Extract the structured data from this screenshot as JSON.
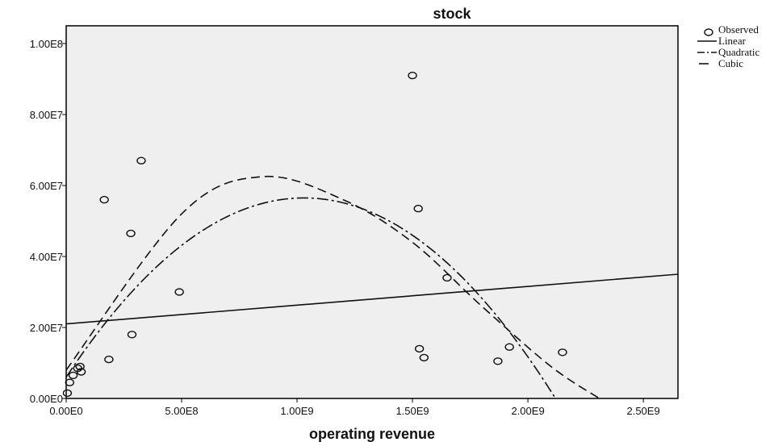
{
  "chart_data": {
    "type": "scatter",
    "title": "stock",
    "xlabel": "operating revenue",
    "ylabel": "",
    "xlim": [
      0,
      2650000000
    ],
    "ylim": [
      0,
      105000000
    ],
    "x_ticks": [
      {
        "value": 0,
        "label": "0.00E0"
      },
      {
        "value": 500000000,
        "label": "5.00E8"
      },
      {
        "value": 1000000000,
        "label": "1.00E9"
      },
      {
        "value": 1500000000,
        "label": "1.50E9"
      },
      {
        "value": 2000000000,
        "label": "2.00E9"
      },
      {
        "value": 2500000000,
        "label": "2.50E9"
      }
    ],
    "y_ticks": [
      {
        "value": 0,
        "label": "0.00E0"
      },
      {
        "value": 20000000,
        "label": "2.00E7"
      },
      {
        "value": 40000000,
        "label": "4.00E7"
      },
      {
        "value": 60000000,
        "label": "6.00E7"
      },
      {
        "value": 80000000,
        "label": "8.00E7"
      },
      {
        "value": 100000000,
        "label": "1.00E8"
      }
    ],
    "grid": false,
    "legend_position": "right-top",
    "legend": [
      {
        "name": "Observed",
        "style": "circle"
      },
      {
        "name": "Linear",
        "style": "solid"
      },
      {
        "name": "Quadratic",
        "style": "dashdot"
      },
      {
        "name": "Cubic",
        "style": "dashed"
      }
    ],
    "observed": {
      "x": [
        5000000,
        15000000,
        30000000,
        50000000,
        60000000,
        65000000,
        165000000,
        185000000,
        280000000,
        285000000,
        325000000,
        490000000,
        1500000000,
        1525000000,
        1530000000,
        1550000000,
        1650000000,
        1870000000,
        1920000000,
        2150000000
      ],
      "y": [
        1500000,
        4500000,
        6500000,
        8500000,
        9000000,
        7500000,
        56000000,
        11000000,
        46500000,
        18000000,
        67000000,
        30000000,
        91000000,
        53500000,
        14000000,
        11500000,
        34000000,
        10500000,
        14500000,
        13000000
      ]
    },
    "fits": {
      "Linear": {
        "x_start": 0,
        "x_end": 2650000000,
        "y_start": 21000000,
        "y_end": 35000000
      },
      "Quadratic": {
        "x_start": 0,
        "x_end": 2150000000,
        "x_peak": 1030000000,
        "y_peak": 56500000,
        "y_intercept": 6000000
      },
      "Cubic": {
        "x_start": 0,
        "x_end": 2310000000,
        "points": [
          [
            0,
            8000000
          ],
          [
            500000000,
            52000000
          ],
          [
            850000000,
            62500000
          ],
          [
            1200000000,
            56000000
          ],
          [
            1500000000,
            44000000
          ],
          [
            1800000000,
            26000000
          ],
          [
            2100000000,
            9000000
          ],
          [
            2310000000,
            0
          ]
        ]
      }
    }
  }
}
